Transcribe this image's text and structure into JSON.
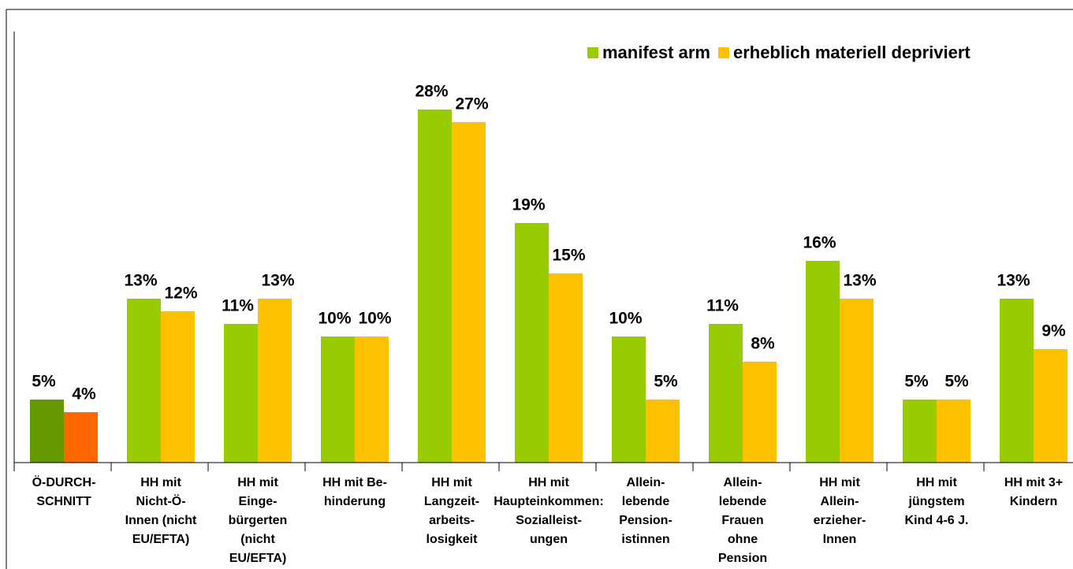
{
  "chart_data": {
    "type": "bar",
    "categories": [
      [
        "Ö-DURCH-",
        "SCHNITT"
      ],
      [
        "HH mit",
        "Nicht-Ö-",
        "Innen (nicht",
        "EU/EFTA)"
      ],
      [
        "HH mit",
        "Einge-",
        "bürgerten",
        "(nicht",
        "EU/EFTA)"
      ],
      [
        "HH mit Be-",
        "hinderung"
      ],
      [
        "HH mit",
        "Langzeit-",
        "arbeits-",
        "losigkeit"
      ],
      [
        "HH mit",
        "Haupteinkommen:",
        "Sozialleist-",
        "ungen"
      ],
      [
        "Allein-",
        "lebende",
        "Pension-",
        "istinnen"
      ],
      [
        "Allein-",
        "lebende",
        "Frauen",
        "ohne",
        "Pension"
      ],
      [
        "HH mit",
        "Allein-",
        "erzieher-",
        "Innen"
      ],
      [
        "HH mit",
        "jüngstem",
        "Kind 4-6 J."
      ],
      [
        "HH mit 3+",
        "Kindern"
      ]
    ],
    "series": [
      {
        "name": "manifest arm",
        "color": "#99cc00",
        "colors": [
          "#669900",
          "#99cc00",
          "#99cc00",
          "#99cc00",
          "#99cc00",
          "#99cc00",
          "#99cc00",
          "#99cc00",
          "#99cc00",
          "#99cc00",
          "#99cc00"
        ],
        "values": [
          5,
          13,
          11,
          10,
          28,
          19,
          10,
          11,
          16,
          5,
          13
        ],
        "value_labels": [
          "5%",
          "13%",
          "11%",
          "10%",
          "28%",
          "19%",
          "10%",
          "11%",
          "16%",
          "5%",
          "13%"
        ]
      },
      {
        "name": "erheblich materiell depriviert",
        "color": "#ffc000",
        "colors": [
          "#ff6600",
          "#ffc000",
          "#ffc000",
          "#ffc000",
          "#ffc000",
          "#ffc000",
          "#ffc000",
          "#ffc000",
          "#ffc000",
          "#ffc000",
          "#ffc000"
        ],
        "values": [
          4,
          12,
          13,
          10,
          27,
          15,
          5,
          8,
          13,
          5,
          9
        ],
        "value_labels": [
          "4%",
          "12%",
          "13%",
          "10%",
          "27%",
          "15%",
          "5%",
          "8%",
          "13%",
          "5%",
          "9%"
        ]
      }
    ],
    "legend": "top-right"
  }
}
